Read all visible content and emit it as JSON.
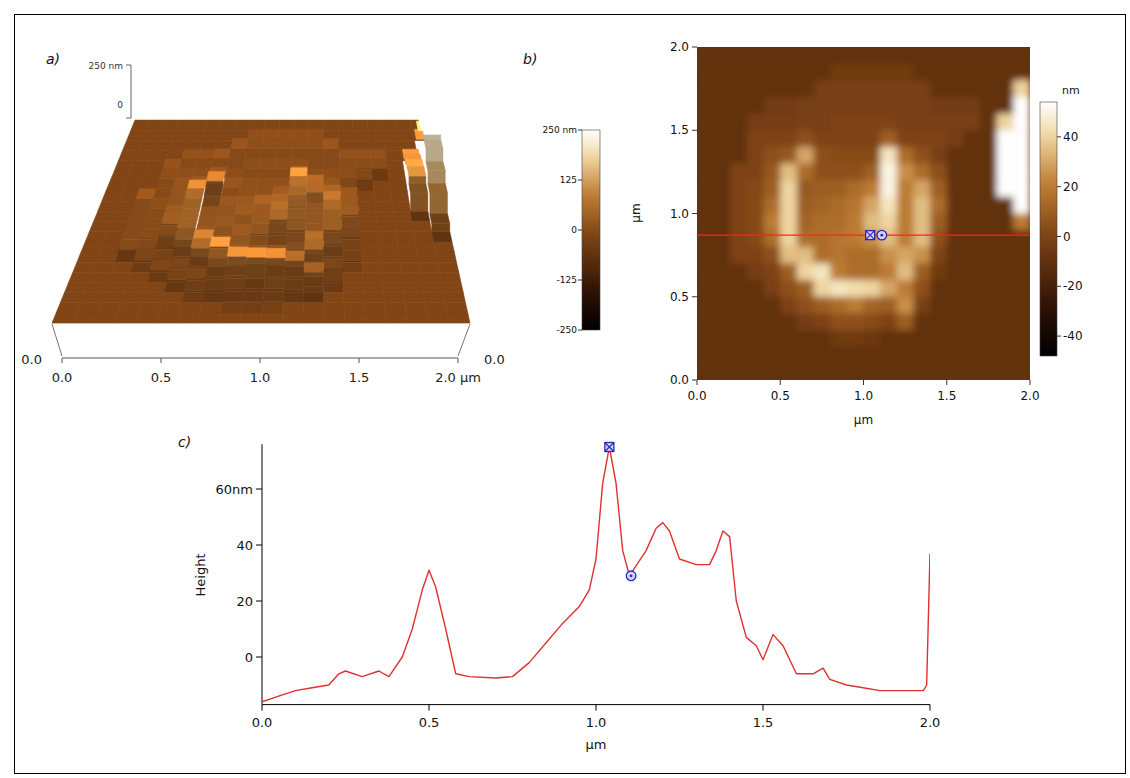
{
  "chart_data": [
    {
      "type": "surface3d",
      "title": "a)",
      "xlim": [
        0,
        2
      ],
      "ylim": [
        0,
        2
      ],
      "zlim": [
        0,
        250
      ],
      "xticks": [
        {
          "value": 0,
          "label": "0.0"
        },
        0.5,
        {
          "value": 1,
          "label": "1.0"
        },
        1.5,
        {
          "value": 2,
          "label": "2.0 µm"
        }
      ],
      "yticks": [
        {
          "value": 0,
          "label": "0.0"
        }
      ],
      "zticks": [
        0,
        {
          "value": 250,
          "label": "250 nm"
        }
      ],
      "color_range": [
        -250,
        250
      ],
      "color_ticks": [
        {
          "value": 250,
          "label": "250 nm"
        },
        125,
        0,
        -125,
        -250
      ]
    },
    {
      "type": "heatmap",
      "title": "b)",
      "xlabel": "µm",
      "ylabel": "µm",
      "xlim": [
        0,
        2
      ],
      "ylim": [
        0,
        2
      ],
      "xticks": [
        {
          "value": 0,
          "label": "0.0"
        },
        0.5,
        {
          "value": 1,
          "label": "1.0"
        },
        1.5,
        {
          "value": 2,
          "label": "2.0"
        }
      ],
      "yticks": [
        {
          "value": 0,
          "label": "0.0"
        },
        0.5,
        {
          "value": 1,
          "label": "1.0"
        },
        1.5,
        {
          "value": 2,
          "label": "2.0"
        }
      ],
      "cells": [
        [
          -10,
          -10,
          -10,
          -10,
          -10,
          -10,
          -10,
          -10,
          -10,
          -10,
          -10,
          -10,
          -10,
          -10,
          -10,
          -10,
          -10,
          -10,
          -10,
          -10
        ],
        [
          -10,
          -10,
          -10,
          -10,
          -10,
          -10,
          -10,
          -10,
          -5,
          -5,
          -5,
          -5,
          -5,
          -10,
          -10,
          -10,
          -10,
          -10,
          -10,
          -10
        ],
        [
          -10,
          -10,
          -10,
          -10,
          -10,
          -10,
          -10,
          -2,
          -2,
          -2,
          -2,
          -2,
          -2,
          -2,
          -10,
          -10,
          -10,
          -10,
          -10,
          40
        ],
        [
          -10,
          -10,
          -10,
          -10,
          -4,
          -4,
          -2,
          -2,
          -2,
          -2,
          -2,
          -2,
          -2,
          -2,
          -4,
          -4,
          -4,
          -10,
          -10,
          120
        ],
        [
          -10,
          -10,
          -10,
          -3,
          -3,
          -3,
          -2,
          -2,
          0,
          0,
          0,
          0,
          -2,
          -2,
          -2,
          -2,
          -2,
          -10,
          40,
          180
        ],
        [
          -10,
          -10,
          -10,
          0,
          0,
          0,
          5,
          0,
          0,
          0,
          0,
          10,
          0,
          0,
          0,
          -3,
          -10,
          -10,
          60,
          200
        ],
        [
          -10,
          -10,
          -10,
          0,
          5,
          8,
          30,
          5,
          3,
          3,
          3,
          45,
          15,
          5,
          -2,
          -10,
          -10,
          -10,
          80,
          220
        ],
        [
          -10,
          -10,
          0,
          0,
          8,
          35,
          15,
          5,
          5,
          5,
          10,
          50,
          25,
          15,
          5,
          -10,
          -10,
          -10,
          90,
          200
        ],
        [
          -10,
          -10,
          0,
          2,
          10,
          40,
          8,
          10,
          10,
          15,
          20,
          50,
          20,
          30,
          10,
          -10,
          -10,
          -10,
          60,
          150
        ],
        [
          -10,
          -10,
          0,
          2,
          15,
          40,
          10,
          12,
          15,
          18,
          30,
          45,
          20,
          35,
          15,
          -10,
          -10,
          -10,
          -10,
          100
        ],
        [
          -10,
          -10,
          0,
          2,
          20,
          40,
          12,
          15,
          15,
          20,
          35,
          40,
          20,
          35,
          10,
          -10,
          -10,
          -10,
          -10,
          20
        ],
        [
          -10,
          -10,
          0,
          2,
          15,
          40,
          15,
          15,
          18,
          20,
          25,
          35,
          20,
          35,
          5,
          -10,
          -10,
          -10,
          -10,
          -10
        ],
        [
          -10,
          -10,
          0,
          0,
          5,
          35,
          35,
          15,
          18,
          15,
          15,
          25,
          30,
          25,
          0,
          -10,
          -10,
          -10,
          -10,
          -10
        ],
        [
          -10,
          -10,
          -10,
          -3,
          0,
          10,
          40,
          45,
          20,
          15,
          15,
          20,
          35,
          10,
          -5,
          -10,
          -10,
          -10,
          -10,
          -10
        ],
        [
          -10,
          -10,
          -10,
          -10,
          -2,
          5,
          10,
          40,
          45,
          42,
          40,
          30,
          20,
          5,
          -10,
          -10,
          -10,
          -10,
          -10,
          -10
        ],
        [
          -10,
          -10,
          -10,
          -10,
          -10,
          0,
          5,
          10,
          15,
          20,
          12,
          10,
          25,
          -2,
          -10,
          -10,
          -10,
          -10,
          -10,
          -10
        ],
        [
          -10,
          -10,
          -10,
          -10,
          -10,
          -10,
          -3,
          0,
          5,
          5,
          3,
          0,
          10,
          -10,
          -10,
          -10,
          -10,
          -10,
          -10,
          -10
        ],
        [
          -10,
          -10,
          -10,
          -10,
          -10,
          -10,
          -10,
          -10,
          -5,
          -5,
          -6,
          -10,
          -10,
          -10,
          -10,
          -10,
          -10,
          -10,
          -10,
          -10
        ],
        [
          -10,
          -10,
          -10,
          -10,
          -10,
          -10,
          -10,
          -10,
          -10,
          -10,
          -10,
          -10,
          -10,
          -10,
          -10,
          -10,
          -10,
          -10,
          -10,
          -10
        ],
        [
          -10,
          -10,
          -10,
          -10,
          -10,
          -10,
          -10,
          -10,
          -10,
          -10,
          -10,
          -10,
          -10,
          -10,
          -10,
          -10,
          -10,
          -10,
          -10,
          -10
        ]
      ],
      "color_range": [
        -48,
        54
      ],
      "color_ticks": [
        -40,
        -20,
        0,
        20,
        40
      ],
      "color_label": "nm",
      "profile_y": 0.87,
      "cursors": [
        {
          "x": 1.04,
          "marker": "square"
        },
        {
          "x": 1.11,
          "marker": "circle"
        }
      ]
    },
    {
      "type": "line",
      "title": "c)",
      "xlabel": "µm",
      "ylabel": "Height",
      "xlim": [
        0,
        2
      ],
      "ylim": [
        -17,
        76
      ],
      "xticks": [
        {
          "value": 0,
          "label": "0.0"
        },
        0.5,
        {
          "value": 1,
          "label": "1.0"
        },
        1.5,
        {
          "value": 2,
          "label": "2.0"
        }
      ],
      "yticks": [
        0,
        20,
        40,
        {
          "value": 60,
          "label": "60nm"
        }
      ],
      "x": [
        0,
        0.05,
        0.1,
        0.15,
        0.2,
        0.23,
        0.25,
        0.3,
        0.35,
        0.38,
        0.42,
        0.45,
        0.48,
        0.5,
        0.52,
        0.55,
        0.58,
        0.62,
        0.7,
        0.75,
        0.8,
        0.85,
        0.9,
        0.95,
        0.98,
        1.0,
        1.02,
        1.04,
        1.06,
        1.08,
        1.1,
        1.15,
        1.18,
        1.2,
        1.22,
        1.25,
        1.3,
        1.34,
        1.36,
        1.38,
        1.4,
        1.42,
        1.45,
        1.48,
        1.5,
        1.53,
        1.56,
        1.6,
        1.65,
        1.68,
        1.7,
        1.75,
        1.8,
        1.85,
        1.9,
        1.95,
        1.98,
        1.99,
        2.0
      ],
      "values": [
        -16,
        -14,
        -12,
        -11,
        -10,
        -6,
        -5,
        -7,
        -5,
        -7,
        0,
        10,
        24,
        31,
        25,
        10,
        -6,
        -7,
        -7.5,
        -7,
        -2,
        5,
        12,
        18,
        24,
        35,
        62,
        75,
        62,
        38,
        29,
        38,
        46,
        48,
        45,
        35,
        33,
        33,
        38,
        45,
        43,
        20,
        7,
        4,
        -1,
        8,
        4,
        -6,
        -6,
        -4,
        -8,
        -10,
        -11,
        -12,
        -12,
        -12,
        -12,
        -10,
        37
      ],
      "color": "#e03030",
      "cursors": [
        {
          "x": 1.04,
          "y": 75,
          "marker": "square"
        },
        {
          "x": 1.105,
          "y": 29,
          "marker": "circle"
        }
      ]
    }
  ]
}
